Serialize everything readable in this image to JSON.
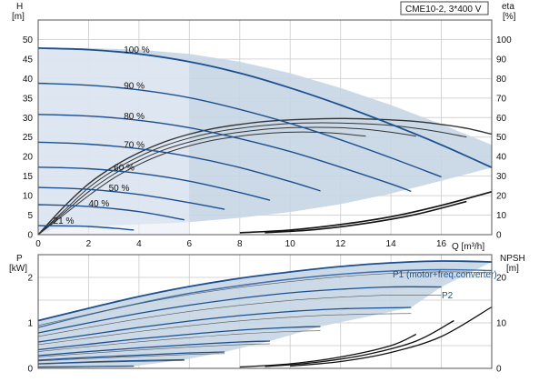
{
  "chart_data": [
    {
      "type": "line",
      "title": "CME10-2, 3*400 V",
      "y_title_symbol": "H",
      "y_title_unit": "[m]",
      "y2_title_symbol": "eta",
      "y2_title_unit": "[%]",
      "x_title": "Q [m³/h]",
      "xlim": [
        0,
        18
      ],
      "ylim": [
        0,
        55
      ],
      "y2lim": [
        0,
        110
      ],
      "x_ticks": [
        0,
        2,
        4,
        6,
        8,
        10,
        12,
        14,
        16
      ],
      "y_ticks": [
        0,
        5,
        10,
        15,
        20,
        25,
        30,
        35,
        40,
        45,
        50
      ],
      "y2_ticks": [
        0,
        10,
        20,
        30,
        40,
        50,
        60,
        70,
        80,
        90,
        100
      ],
      "grid": true,
      "speed_curve_labels": [
        "100 %",
        "90 %",
        "80 %",
        "70 %",
        "60 %",
        "50 %",
        "40 %",
        "21 %"
      ],
      "speed_curves": [
        {
          "x": [
            0,
            2,
            4,
            6,
            8,
            10,
            12,
            14,
            16,
            18
          ],
          "y": [
            47.8,
            47.4,
            46.3,
            44.3,
            41.4,
            37.6,
            33.2,
            28.3,
            23.0,
            17.2
          ]
        },
        {
          "x": [
            0,
            2,
            4,
            6,
            8,
            10,
            12,
            14,
            16
          ],
          "y": [
            38.8,
            38.3,
            37.1,
            35.1,
            32.1,
            28.5,
            24.3,
            19.7,
            14.8
          ]
        },
        {
          "x": [
            0,
            2,
            4,
            6,
            8,
            10,
            12,
            14,
            14.8
          ],
          "y": [
            30.8,
            30.4,
            29.3,
            27.4,
            24.6,
            21.3,
            17.3,
            13.0,
            11.1
          ]
        },
        {
          "x": [
            0,
            2,
            4,
            6,
            8,
            10,
            11.2
          ],
          "y": [
            23.7,
            23.2,
            22.0,
            20.0,
            17.2,
            13.6,
            11.2
          ]
        },
        {
          "x": [
            0,
            2,
            4,
            6,
            8,
            9.2
          ],
          "y": [
            17.3,
            16.9,
            15.7,
            13.7,
            10.8,
            8.8
          ]
        },
        {
          "x": [
            0,
            2,
            4,
            6,
            7.4
          ],
          "y": [
            12.1,
            11.6,
            10.3,
            8.2,
            6.5
          ]
        },
        {
          "x": [
            0,
            2,
            4,
            5.8
          ],
          "y": [
            7.7,
            7.2,
            5.9,
            3.8
          ]
        },
        {
          "x": [
            0,
            2,
            3.8
          ],
          "y": [
            2.3,
            2.1,
            1.2
          ]
        }
      ],
      "operating_area_boundary": {
        "x": [
          0,
          0.6,
          2,
          4,
          6,
          8,
          10,
          12,
          14,
          16,
          18,
          18,
          16,
          14,
          12,
          10,
          8,
          6,
          4,
          2,
          0
        ],
        "y": [
          0,
          1.5,
          2.2,
          2.6,
          3.2,
          4.3,
          5.8,
          7.8,
          10.5,
          13.8,
          17.2,
          23.0,
          28.3,
          33.2,
          37.6,
          41.4,
          44.3,
          46.3,
          47.4,
          47.8,
          47.8
        ]
      },
      "efficiency_curves_eta_pct": [
        {
          "x": [
            0,
            1,
            2,
            3,
            4,
            5,
            6,
            7,
            8,
            9,
            10,
            11,
            12,
            13,
            14,
            15,
            16,
            17,
            18
          ],
          "y": [
            0,
            14,
            26,
            35,
            42,
            47.5,
            51.5,
            54.5,
            56.5,
            58,
            58.8,
            59.3,
            59.5,
            59.3,
            58.8,
            58,
            56.5,
            54.5,
            51.5
          ]
        },
        {
          "x": [
            0,
            1,
            2,
            3,
            4,
            5,
            6,
            7,
            8,
            9,
            10,
            11,
            12,
            13,
            14,
            15,
            16,
            17
          ],
          "y": [
            0,
            12,
            24,
            33,
            40,
            45.5,
            49.5,
            52.5,
            54.5,
            56,
            57,
            57.3,
            57.2,
            56.8,
            56,
            54.5,
            52.5,
            50
          ]
        },
        {
          "x": [
            0,
            1,
            2,
            3,
            4,
            5,
            6,
            7,
            8,
            9,
            10,
            11,
            12,
            13,
            14,
            15
          ],
          "y": [
            0,
            11,
            22,
            31,
            38,
            43.5,
            47.5,
            50.5,
            52.5,
            54,
            54.8,
            55,
            54.8,
            54,
            52.5,
            50.5
          ]
        },
        {
          "x": [
            0,
            1,
            2,
            3,
            4,
            5,
            6,
            7,
            8,
            9,
            10,
            11,
            12,
            13
          ],
          "y": [
            0,
            10,
            20,
            29,
            36,
            41.5,
            45.5,
            48.5,
            50.5,
            51.8,
            52.5,
            52.5,
            51.8,
            50.5
          ]
        }
      ],
      "npsh_reference_curves": [
        {
          "x": [
            8,
            10,
            12,
            14,
            16,
            18
          ],
          "y": [
            0.5,
            1.2,
            2.6,
            4.6,
            7.5,
            11.0
          ]
        },
        {
          "x": [
            9,
            11,
            13,
            15,
            17
          ],
          "y": [
            0.5,
            1.3,
            2.9,
            5.2,
            8.5
          ]
        }
      ]
    },
    {
      "type": "line",
      "y_title_symbol": "P",
      "y_title_unit": "[kW]",
      "y2_title_symbol": "NPSH",
      "y2_title_unit": "[m]",
      "xlim": [
        0,
        18
      ],
      "ylim": [
        0,
        2.5
      ],
      "y2lim": [
        0,
        25
      ],
      "y_ticks": [
        0,
        1,
        2
      ],
      "y2_ticks": [
        0,
        10,
        20
      ],
      "grid": true,
      "series_labels": [
        "P1 (motor+freq.converter)",
        "P2"
      ],
      "p1_curves": [
        {
          "x": [
            0,
            2,
            4,
            6,
            8,
            10,
            12,
            14,
            16,
            18
          ],
          "y": [
            1.05,
            1.32,
            1.58,
            1.8,
            1.98,
            2.12,
            2.24,
            2.32,
            2.36,
            2.34
          ]
        },
        {
          "x": [
            0,
            2,
            4,
            6,
            8,
            10,
            12,
            14,
            16
          ],
          "y": [
            0.78,
            1.0,
            1.21,
            1.39,
            1.54,
            1.66,
            1.74,
            1.79,
            1.79
          ]
        },
        {
          "x": [
            0,
            2,
            4,
            6,
            8,
            10,
            12,
            14.8
          ],
          "y": [
            0.58,
            0.74,
            0.9,
            1.04,
            1.16,
            1.25,
            1.31,
            1.34
          ]
        },
        {
          "x": [
            0,
            2,
            4,
            6,
            8,
            10,
            11.2
          ],
          "y": [
            0.41,
            0.53,
            0.65,
            0.75,
            0.84,
            0.9,
            0.92
          ]
        },
        {
          "x": [
            0,
            2,
            4,
            6,
            8,
            9.2
          ],
          "y": [
            0.28,
            0.37,
            0.45,
            0.52,
            0.58,
            0.6
          ]
        },
        {
          "x": [
            0,
            2,
            4,
            6,
            7.4
          ],
          "y": [
            0.18,
            0.24,
            0.29,
            0.34,
            0.36
          ]
        },
        {
          "x": [
            0,
            2,
            4,
            5.8
          ],
          "y": [
            0.1,
            0.14,
            0.17,
            0.19
          ]
        },
        {
          "x": [
            0,
            2,
            3.8
          ],
          "y": [
            0.03,
            0.04,
            0.05
          ]
        }
      ],
      "p2_curve": {
        "x": [
          0,
          2,
          4,
          6,
          8,
          10,
          12,
          14,
          16,
          18
        ],
        "y": [
          0.9,
          1.18,
          1.43,
          1.65,
          1.82,
          1.96,
          2.07,
          2.14,
          2.17,
          2.15
        ]
      },
      "npsh_curves": [
        {
          "x": [
            10,
            12,
            14,
            16,
            18
          ],
          "y": [
            0.5,
            1.5,
            3.5,
            7.0,
            13.5
          ]
        },
        {
          "x": [
            9,
            11,
            13,
            15,
            16.5
          ],
          "y": [
            0.4,
            1.3,
            3.0,
            6.0,
            10.5
          ]
        },
        {
          "x": [
            8,
            10,
            12,
            14,
            15
          ],
          "y": [
            0.3,
            1.0,
            2.5,
            5.0,
            7.5
          ]
        }
      ]
    }
  ]
}
